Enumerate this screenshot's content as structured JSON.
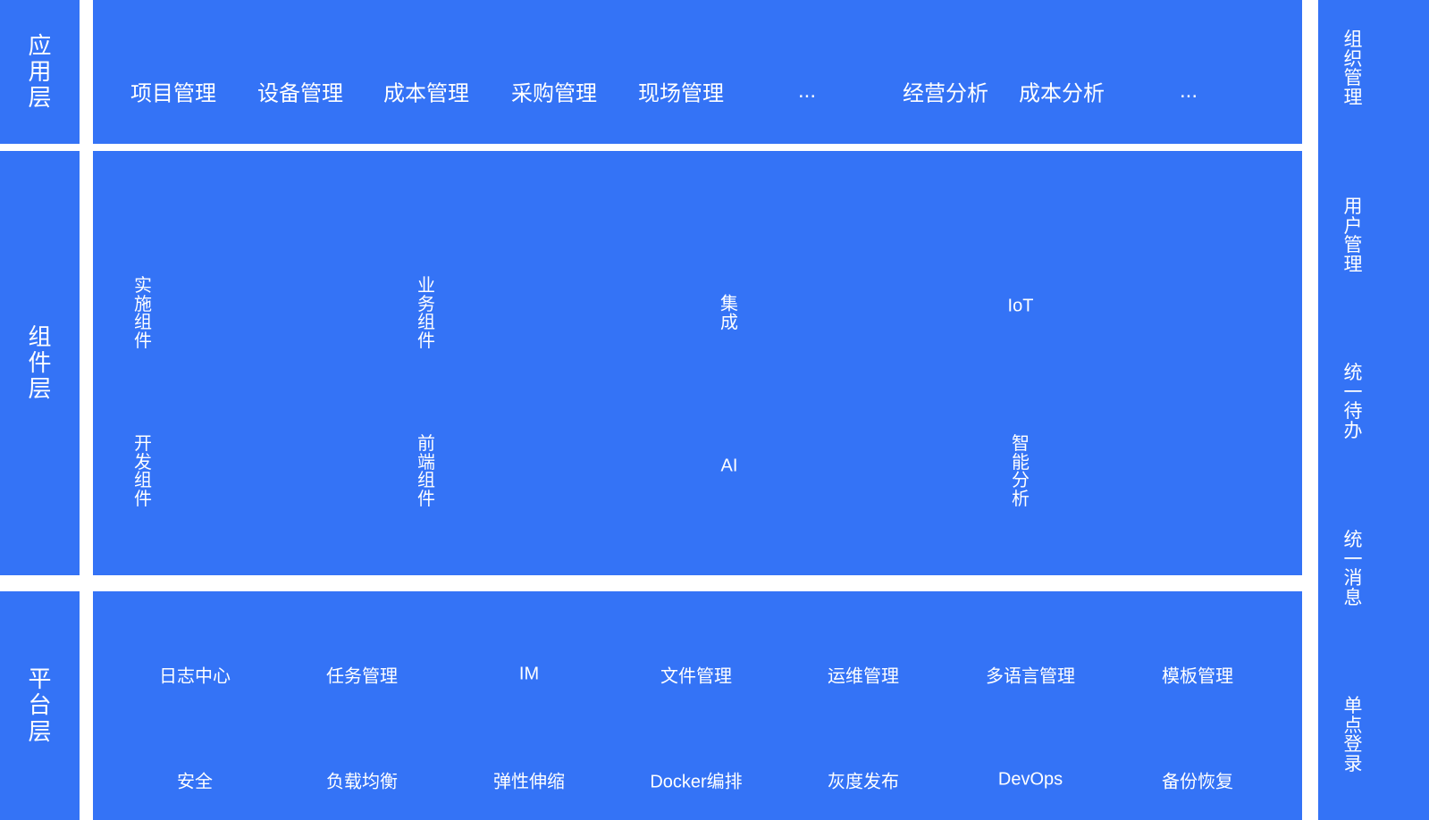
{
  "colors": {
    "block": "#3473F6",
    "text": "#FFFFFF",
    "background": "#FFFFFF"
  },
  "layers": {
    "application": {
      "title": "应用层",
      "items": [
        "项目管理",
        "设备管理",
        "成本管理",
        "采购管理",
        "现场管理",
        "...",
        "经营分析",
        "成本分析",
        "..."
      ]
    },
    "component": {
      "title": "组件层",
      "row1": [
        "实施组件",
        "业务组件",
        "集成",
        "IoT"
      ],
      "row2": [
        "开发组件",
        "前端组件",
        "AI",
        "智能分析"
      ]
    },
    "platform": {
      "title": "平台层",
      "row1": [
        "日志中心",
        "任务管理",
        "IM",
        "文件管理",
        "运维管理",
        "多语言管理",
        "模板管理"
      ],
      "row2": [
        "安全",
        "负载均衡",
        "弹性伸缩",
        "Docker编排",
        "灰度发布",
        "DevOps",
        "备份恢复"
      ]
    }
  },
  "sidebar": {
    "items": [
      "组织管理",
      "用户管理",
      "统一待办",
      "统一消息",
      "单点登录"
    ]
  }
}
